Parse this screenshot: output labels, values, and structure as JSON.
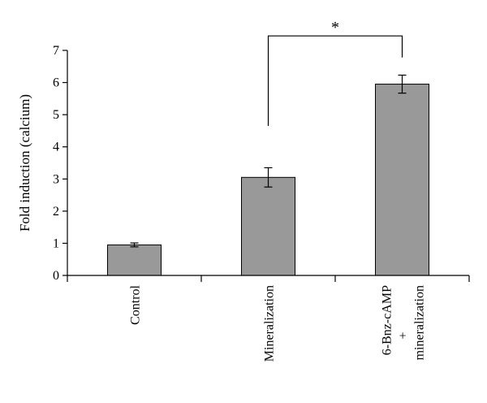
{
  "chart_data": {
    "type": "bar",
    "categories": [
      [
        "Control"
      ],
      [
        "Mineralization"
      ],
      [
        "6-Bnz-cAMP",
        "+",
        "mineralization"
      ]
    ],
    "values": [
      0.95,
      3.05,
      5.95
    ],
    "errors": [
      0.06,
      0.3,
      0.28
    ],
    "title": "",
    "xlabel": "",
    "ylabel": "Fold induction (calcium)",
    "ylim": [
      0,
      7
    ],
    "yticks": [
      0,
      1,
      2,
      3,
      4,
      5,
      6,
      7
    ],
    "grid": false,
    "legend": "none",
    "bar_color": "#999999",
    "annotations": [
      {
        "text": "*",
        "from_category": 1,
        "to_category": 2,
        "y": 7.45
      }
    ]
  }
}
